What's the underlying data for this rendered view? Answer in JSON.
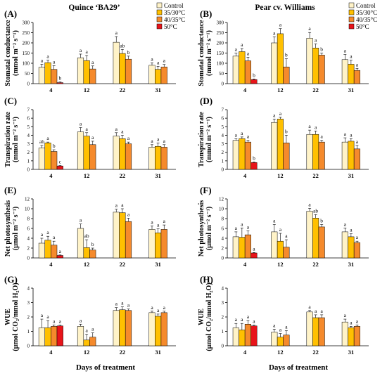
{
  "figure": {
    "col_titles": [
      "Quince ‘BA29’",
      "Pear cv. Williams"
    ],
    "x_title": "Days of treatment",
    "legend": {
      "entries": [
        "Control",
        "35/30°C",
        "40/35°C",
        "50°C"
      ],
      "colors": [
        "#FFF3C8",
        "#FFC000",
        "#F58A2C",
        "#E8141A"
      ]
    }
  },
  "chart_data": [
    {
      "type": "bar",
      "label": "(A)",
      "row": 0,
      "col": 0,
      "ylabel_lines": [
        "Stomatal conductance",
        "(mmol m⁻² s⁻¹)"
      ],
      "categories": [
        "4",
        "12",
        "22",
        "31"
      ],
      "ylim": [
        0,
        300
      ],
      "yticks": [
        0,
        50,
        100,
        150,
        200,
        250,
        300
      ],
      "series": [
        {
          "name": "Control",
          "values": [
            80,
            127,
            203,
            90
          ],
          "errors": [
            15,
            18,
            28,
            12
          ],
          "labels": [
            "a",
            "a",
            "a",
            "a"
          ]
        },
        {
          "name": "35/30°C",
          "values": [
            103,
            113,
            148,
            70
          ],
          "errors": [
            12,
            25,
            20,
            15
          ],
          "labels": [
            "a",
            "a",
            "ab",
            "a"
          ]
        },
        {
          "name": "40/35°C",
          "values": [
            70,
            72,
            120,
            82
          ],
          "errors": [
            18,
            15,
            15,
            12
          ],
          "labels": [
            "a",
            "a",
            "b",
            "a"
          ]
        },
        {
          "name": "50°C",
          "values": [
            5,
            null,
            null,
            null
          ],
          "errors": [
            3,
            null,
            null,
            null
          ],
          "labels": [
            "b",
            "",
            "",
            ""
          ]
        }
      ]
    },
    {
      "type": "bar",
      "label": "(B)",
      "row": 0,
      "col": 1,
      "ylabel_lines": [
        "Stomatal conductance",
        "(mmol m⁻² s⁻¹)"
      ],
      "categories": [
        "4",
        "12",
        "22",
        "31"
      ],
      "ylim": [
        0,
        300
      ],
      "yticks": [
        0,
        50,
        100,
        150,
        200,
        250,
        300
      ],
      "series": [
        {
          "name": "Control",
          "values": [
            135,
            200,
            223,
            118
          ],
          "errors": [
            15,
            30,
            28,
            25
          ],
          "labels": [
            "a",
            "a",
            "a",
            "a"
          ]
        },
        {
          "name": "35/30°C",
          "values": [
            157,
            245,
            175,
            95
          ],
          "errors": [
            15,
            25,
            20,
            20
          ],
          "labels": [
            "a",
            "a",
            "a",
            "a"
          ]
        },
        {
          "name": "40/35°C",
          "values": [
            112,
            82,
            140,
            65
          ],
          "errors": [
            18,
            40,
            10,
            10
          ],
          "labels": [
            "a",
            "b",
            "b",
            "a"
          ]
        },
        {
          "name": "50°C",
          "values": [
            20,
            null,
            null,
            null
          ],
          "errors": [
            3,
            null,
            null,
            null
          ],
          "labels": [
            "b",
            "",
            "",
            ""
          ]
        }
      ]
    },
    {
      "type": "bar",
      "label": "(C)",
      "row": 1,
      "col": 0,
      "ylabel_lines": [
        "Transpiration rate",
        "(mmol m⁻² s⁻¹)"
      ],
      "categories": [
        "4",
        "12",
        "22",
        "31"
      ],
      "ylim": [
        0,
        7
      ],
      "yticks": [
        0,
        1,
        2,
        3,
        4,
        5,
        6,
        7
      ],
      "series": [
        {
          "name": "Control",
          "values": [
            2.5,
            4.4,
            3.9,
            2.6
          ],
          "errors": [
            0.3,
            0.5,
            0.4,
            0.3
          ],
          "labels": [
            "ab",
            "a",
            "a",
            "a"
          ]
        },
        {
          "name": "35/30°C",
          "values": [
            3.1,
            3.9,
            3.6,
            2.7
          ],
          "errors": [
            0.1,
            0.4,
            0.4,
            0.4
          ],
          "labels": [
            "a",
            "a",
            "a",
            "a"
          ]
        },
        {
          "name": "40/35°C",
          "values": [
            2.1,
            2.9,
            3.0,
            2.6
          ],
          "errors": [
            0.2,
            0.4,
            0.2,
            0.3
          ],
          "labels": [
            "b",
            "a",
            "a",
            "a"
          ]
        },
        {
          "name": "50°C",
          "values": [
            0.4,
            null,
            null,
            null
          ],
          "errors": [
            0.05,
            null,
            null,
            null
          ],
          "labels": [
            "c",
            "",
            "",
            ""
          ]
        }
      ]
    },
    {
      "type": "bar",
      "label": "(D)",
      "row": 1,
      "col": 1,
      "ylabel_lines": [
        "Transpiration rate",
        "(mmol m⁻² s⁻¹)"
      ],
      "categories": [
        "4",
        "12",
        "22",
        "31"
      ],
      "ylim": [
        0,
        7
      ],
      "yticks": [
        0,
        1,
        2,
        3,
        4,
        5,
        6,
        7
      ],
      "series": [
        {
          "name": "Control",
          "values": [
            3.4,
            5.5,
            4.1,
            3.2
          ],
          "errors": [
            0.2,
            0.4,
            0.5,
            0.5
          ],
          "labels": [
            "a",
            "a",
            "a",
            "a"
          ]
        },
        {
          "name": "35/30°C",
          "values": [
            3.6,
            5.9,
            4.1,
            3.3
          ],
          "errors": [
            0.2,
            0.2,
            0.4,
            0.3
          ],
          "labels": [
            "a",
            "a",
            "a",
            "a"
          ]
        },
        {
          "name": "40/35°C",
          "values": [
            3.2,
            3.1,
            3.2,
            2.4
          ],
          "errors": [
            0.2,
            0.9,
            0.2,
            0.4
          ],
          "labels": [
            "a",
            "b",
            "a",
            "a"
          ]
        },
        {
          "name": "50°C",
          "values": [
            0.8,
            null,
            null,
            null
          ],
          "errors": [
            0.05,
            null,
            null,
            null
          ],
          "labels": [
            "b",
            "",
            "",
            ""
          ]
        }
      ]
    },
    {
      "type": "bar",
      "label": "(E)",
      "row": 2,
      "col": 0,
      "ylabel_lines": [
        "Net photosynthesis",
        "(µmol m⁻² s⁻¹)"
      ],
      "categories": [
        "4",
        "12",
        "22",
        "31"
      ],
      "ylim": [
        0,
        12
      ],
      "yticks": [
        0,
        2,
        4,
        6,
        8,
        10,
        12
      ],
      "series": [
        {
          "name": "Control",
          "values": [
            3.0,
            6.0,
            9.3,
            5.8
          ],
          "errors": [
            1.0,
            0.9,
            0.6,
            0.7
          ],
          "labels": [
            "a",
            "a",
            "a",
            "a"
          ]
        },
        {
          "name": "35/30°C",
          "values": [
            3.6,
            2.1,
            9.2,
            5.1
          ],
          "errors": [
            0.8,
            1.6,
            0.8,
            0.8
          ],
          "labels": [
            "a",
            "ab",
            "a",
            "a"
          ]
        },
        {
          "name": "40/35°C",
          "values": [
            2.6,
            1.6,
            7.4,
            5.8
          ],
          "errors": [
            0.8,
            0.4,
            0.7,
            0.9
          ],
          "labels": [
            "a",
            "b",
            "a",
            "a"
          ]
        },
        {
          "name": "50°C",
          "values": [
            0.5,
            null,
            null,
            null
          ],
          "errors": [
            0.1,
            null,
            null,
            null
          ],
          "labels": [
            "a",
            "",
            "",
            ""
          ]
        }
      ]
    },
    {
      "type": "bar",
      "label": "(F)",
      "row": 2,
      "col": 1,
      "ylabel_lines": [
        "Net photosynthesis",
        "(µmol m⁻² s⁻¹)"
      ],
      "categories": [
        "4",
        "12",
        "22",
        "31"
      ],
      "ylim": [
        0,
        12
      ],
      "yticks": [
        0,
        2,
        4,
        6,
        8,
        10,
        12
      ],
      "series": [
        {
          "name": "Control",
          "values": [
            4.3,
            5.3,
            9.5,
            5.3
          ],
          "errors": [
            1.0,
            1.5,
            0.6,
            0.8
          ],
          "labels": [
            "a",
            "a",
            "a",
            "a"
          ]
        },
        {
          "name": "35/30°C",
          "values": [
            4.2,
            3.4,
            8.1,
            4.3
          ],
          "errors": [
            1.9,
            1.6,
            0.7,
            0.6
          ],
          "labels": [
            "a",
            "a",
            "ab",
            "a"
          ]
        },
        {
          "name": "40/35°C",
          "values": [
            4.7,
            2.2,
            6.3,
            3.1
          ],
          "errors": [
            0.8,
            1.5,
            0.5,
            0.3
          ],
          "labels": [
            "a",
            "a",
            "b",
            "a"
          ]
        },
        {
          "name": "50°C",
          "values": [
            1.0,
            null,
            null,
            null
          ],
          "errors": [
            0.1,
            null,
            null,
            null
          ],
          "labels": [
            "a",
            "",
            "",
            ""
          ]
        }
      ]
    },
    {
      "type": "bar",
      "label": "(G)",
      "row": 3,
      "col": 0,
      "ylabel_lines": [
        "WUE",
        "(µmol CO₂/mmol H₂O)"
      ],
      "categories": [
        "4",
        "12",
        "22",
        "31"
      ],
      "ylim": [
        0,
        4
      ],
      "yticks": [
        0,
        1,
        2,
        3,
        4
      ],
      "series": [
        {
          "name": "Control",
          "values": [
            1.25,
            1.35,
            2.45,
            2.3
          ],
          "errors": [
            0.6,
            0.15,
            0.2,
            0.1
          ],
          "labels": [
            "a",
            "a",
            "a",
            "a"
          ]
        },
        {
          "name": "35/30°C",
          "values": [
            1.25,
            0.4,
            2.5,
            2.05
          ],
          "errors": [
            0.5,
            0.4,
            0.2,
            0.15
          ],
          "labels": [
            "a",
            "a",
            "a",
            "a"
          ]
        },
        {
          "name": "40/35°C",
          "values": [
            1.35,
            0.6,
            2.45,
            2.3
          ],
          "errors": [
            0.1,
            0.3,
            0.1,
            0.1
          ],
          "labels": [
            "a",
            "a",
            "a",
            "a"
          ]
        },
        {
          "name": "50°C",
          "values": [
            1.38,
            null,
            null,
            null
          ],
          "errors": [
            0.05,
            null,
            null,
            null
          ],
          "labels": [
            "a",
            "",
            "",
            ""
          ]
        }
      ]
    },
    {
      "type": "bar",
      "label": "(H)",
      "row": 3,
      "col": 1,
      "ylabel_lines": [
        "WUE",
        "(µmol CO₂/mmol H₂O)"
      ],
      "categories": [
        "4",
        "12",
        "22",
        "31"
      ],
      "ylim": [
        0,
        4
      ],
      "yticks": [
        0,
        1,
        2,
        3,
        4
      ],
      "series": [
        {
          "name": "Control",
          "values": [
            1.25,
            0.95,
            2.35,
            1.65
          ],
          "errors": [
            0.3,
            0.2,
            0.1,
            0.2
          ],
          "labels": [
            "a",
            "a",
            "a",
            "a"
          ]
        },
        {
          "name": "35/30°C",
          "values": [
            1.1,
            0.6,
            1.95,
            1.25
          ],
          "errors": [
            0.45,
            0.25,
            0.2,
            0.1
          ],
          "labels": [
            "a",
            "a",
            "a",
            "a"
          ]
        },
        {
          "name": "40/35°C",
          "values": [
            1.5,
            0.75,
            1.95,
            1.35
          ],
          "errors": [
            0.25,
            0.3,
            0.2,
            0.1
          ],
          "labels": [
            "a",
            "a",
            "a",
            "a"
          ]
        },
        {
          "name": "50°C",
          "values": [
            1.38,
            null,
            null,
            null
          ],
          "errors": [
            0.05,
            null,
            null,
            null
          ],
          "labels": [
            "a",
            "",
            "",
            ""
          ]
        }
      ]
    }
  ]
}
